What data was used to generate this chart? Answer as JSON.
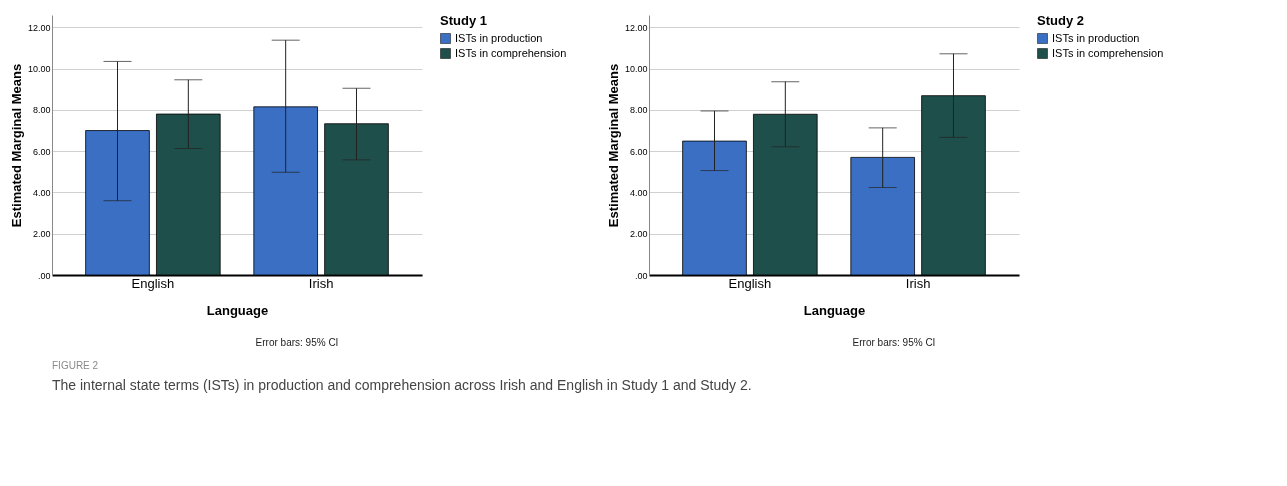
{
  "chart_data": [
    {
      "type": "bar",
      "legend_title": "Study 1",
      "xlabel": "Language",
      "ylabel": "Estimated Marginal Means",
      "categories": [
        "English",
        "Irish"
      ],
      "series": [
        {
          "name": "ISTs in production",
          "color": "#3a6fc4",
          "values": [
            7.0,
            8.15
          ],
          "errors": [
            [
              3.6,
              10.35
            ],
            [
              4.98,
              11.38
            ]
          ]
        },
        {
          "name": "ISTs in comprehension",
          "color": "#1f4f4a",
          "values": [
            7.8,
            7.33
          ],
          "errors": [
            [
              6.13,
              9.46
            ],
            [
              5.58,
              9.05
            ]
          ]
        }
      ],
      "ylim": [
        0,
        12.6
      ],
      "yticks": [
        {
          "value": 0,
          "label": ".00"
        },
        {
          "value": 2,
          "label": "2.00"
        },
        {
          "value": 4,
          "label": "4.00"
        },
        {
          "value": 6,
          "label": "6.00"
        },
        {
          "value": 8,
          "label": "8.00"
        },
        {
          "value": 10,
          "label": "10.00"
        },
        {
          "value": 12,
          "label": "12.00"
        }
      ],
      "grid": "y",
      "legend": "top right",
      "annotations": [
        "Error bars: 95% CI",
        "FIGURE 2",
        "The internal state terms (ISTs) in production and comprehension across Irish and English in Study 1 and Study 2."
      ]
    },
    {
      "type": "bar",
      "legend_title": "Study 2",
      "xlabel": "Language",
      "ylabel": "Estimated Marginal Means",
      "categories": [
        "English",
        "Irish"
      ],
      "series": [
        {
          "name": "ISTs in production",
          "color": "#3a6fc4",
          "values": [
            6.49,
            5.7
          ],
          "errors": [
            [
              5.06,
              7.95
            ],
            [
              4.24,
              7.13
            ]
          ]
        },
        {
          "name": "ISTs in comprehension",
          "color": "#1f4f4a",
          "values": [
            7.79,
            8.69
          ],
          "errors": [
            [
              6.22,
              9.37
            ],
            [
              6.67,
              10.72
            ]
          ]
        }
      ],
      "ylim": [
        0,
        12.6
      ],
      "yticks": [
        {
          "value": 0,
          "label": ".00"
        },
        {
          "value": 2,
          "label": "2.00"
        },
        {
          "value": 4,
          "label": "4.00"
        },
        {
          "value": 6,
          "label": "6.00"
        },
        {
          "value": 8,
          "label": "8.00"
        },
        {
          "value": 10,
          "label": "10.00"
        },
        {
          "value": 12,
          "label": "12.00"
        }
      ],
      "grid": "y",
      "legend": "top right",
      "annotations": [
        "Error bars: 95% CI"
      ]
    }
  ]
}
